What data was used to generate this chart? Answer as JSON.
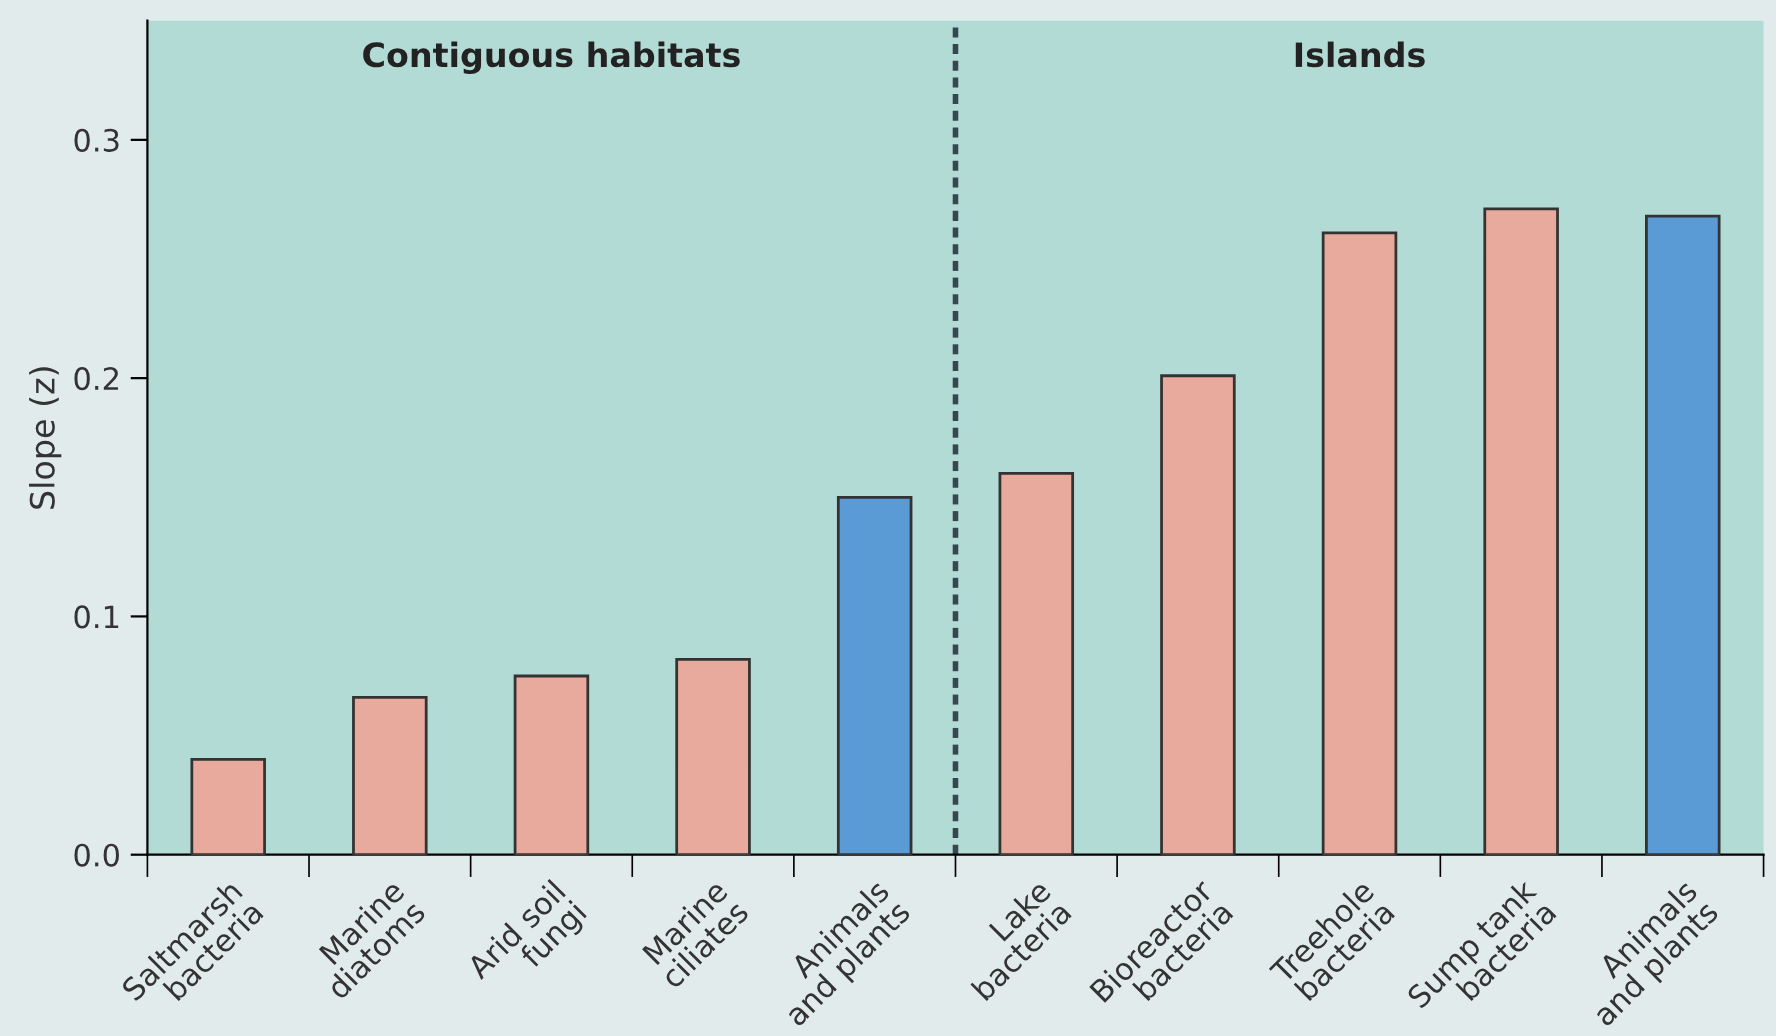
{
  "chart_data": {
    "type": "bar",
    "ylabel": "Slope (z)",
    "categories": [
      "Saltmarsh\nbacteria",
      "Marine\ndiatoms",
      "Arid soil\nfungi",
      "Marine\nciliates",
      "Animals\nand plants",
      "Lake\nbacteria",
      "Bioreactor\nbacteria",
      "Treehole\nbacteria",
      "Sump tank\nbacteria",
      "Animals\nand plants"
    ],
    "values": [
      0.04,
      0.066,
      0.075,
      0.082,
      0.15,
      0.16,
      0.201,
      0.261,
      0.271,
      0.268
    ],
    "colors": [
      "#e9aa9e",
      "#e9aa9e",
      "#e9aa9e",
      "#e9aa9e",
      "#5b9bd5",
      "#e9aa9e",
      "#e9aa9e",
      "#e9aa9e",
      "#e9aa9e",
      "#5b9bd5"
    ],
    "ylim": [
      0,
      0.35
    ],
    "yticks": [
      {
        "value": 0,
        "label": "0.0"
      },
      0.1,
      0.2,
      0.3
    ],
    "annotations": [
      "Contiguous habitats",
      "Islands"
    ],
    "grid": false,
    "legend": false
  }
}
